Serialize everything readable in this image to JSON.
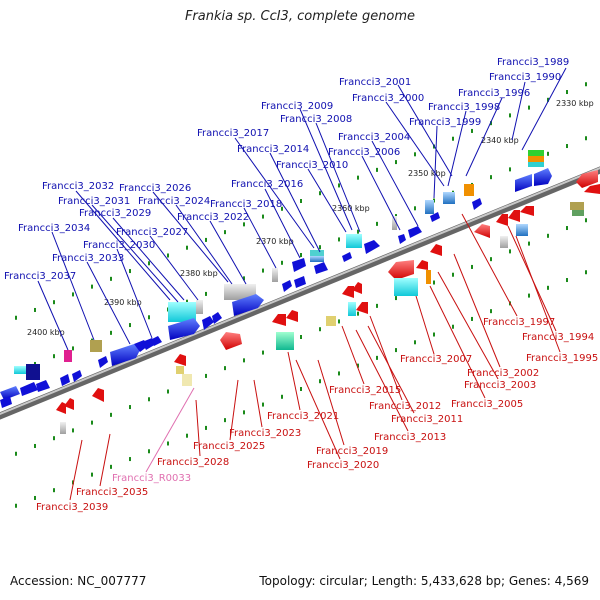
{
  "title": "Frankia sp. CcI3, complete genome",
  "footer": {
    "accession": "Accession: NC_007777",
    "info": "Topology: circular; Length: 5,433,628 bp; Genes: 4,569"
  },
  "colors": {
    "forward_gene": "#1010d8",
    "reverse_gene": "#e01010",
    "forward_label": "#1010b0",
    "reverse_label": "#c81010",
    "rna_label": "#e070b0",
    "ticks": "#1a8a1a",
    "backbone": "#808080"
  },
  "scale": [
    "2330 kbp",
    "2340 kbp",
    "2350 kbp",
    "2360 kbp",
    "2370 kbp",
    "2380 kbp",
    "2390 kbp",
    "2400 kbp"
  ],
  "forward_labels": [
    "Francci3_1989",
    "Francci3_1990",
    "Francci3_2001",
    "Francci3_1996",
    "Francci3_2000",
    "Francci3_1998",
    "Francci3_2009",
    "Francci3_1999",
    "Francci3_2008",
    "Francci3_2017",
    "Francci3_2004",
    "Francci3_2014",
    "Francci3_2006",
    "Francci3_2010",
    "Francci3_2016",
    "Francci3_2032",
    "Francci3_2026",
    "Francci3_2031",
    "Francci3_2018",
    "Francci3_2024",
    "Francci3_2029",
    "Francci3_2022",
    "Francci3_2034",
    "Francci3_2027",
    "Francci3_2030",
    "Francci3_2033",
    "Francci3_2037"
  ],
  "reverse_labels": [
    "Francci3_1997",
    "Francci3_1994",
    "Francci3_1995",
    "Francci3_2007",
    "Francci3_2002",
    "Francci3_2003",
    "Francci3_2005",
    "Francci3_2015",
    "Francci3_2012",
    "Francci3_2011",
    "Francci3_2021",
    "Francci3_2013",
    "Francci3_2023",
    "Francci3_2019",
    "Francci3_2025",
    "Francci3_2020",
    "Francci3_2028",
    "Francci3_2035",
    "Francci3_2039"
  ],
  "rna_labels": [
    "Francci3_R0033"
  ]
}
